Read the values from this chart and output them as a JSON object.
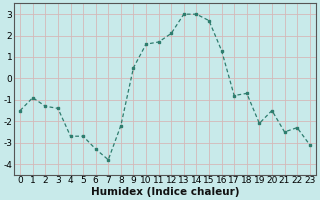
{
  "x": [
    0,
    1,
    2,
    3,
    4,
    5,
    6,
    7,
    8,
    9,
    10,
    11,
    12,
    13,
    14,
    15,
    16,
    17,
    18,
    19,
    20,
    21,
    22,
    23
  ],
  "y": [
    -1.5,
    -0.9,
    -1.3,
    -1.4,
    -2.7,
    -2.7,
    -3.3,
    -3.8,
    -2.2,
    0.5,
    1.6,
    1.7,
    2.1,
    3.0,
    3.0,
    2.7,
    1.3,
    -0.8,
    -0.7,
    -2.1,
    -1.5,
    -2.5,
    -2.3,
    -3.1
  ],
  "xlabel": "Humidex (Indice chaleur)",
  "ylim": [
    -4.5,
    3.5
  ],
  "xlim": [
    -0.5,
    23.5
  ],
  "yticks": [
    -4,
    -3,
    -2,
    -1,
    0,
    1,
    2,
    3
  ],
  "xticks": [
    0,
    1,
    2,
    3,
    4,
    5,
    6,
    7,
    8,
    9,
    10,
    11,
    12,
    13,
    14,
    15,
    16,
    17,
    18,
    19,
    20,
    21,
    22,
    23
  ],
  "line_color": "#2e7d6e",
  "marker_color": "#2e7d6e",
  "bg_color": "#c8eaea",
  "grid_color": "#d4b8b8",
  "xlabel_fontsize": 7.5,
  "tick_fontsize": 6.5
}
